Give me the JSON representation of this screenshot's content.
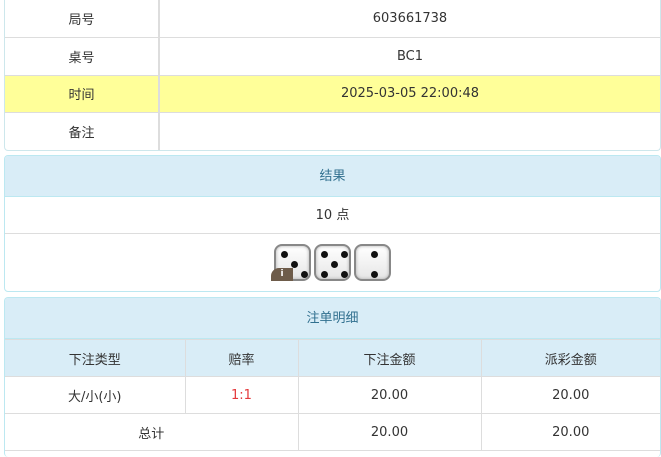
{
  "info": [
    {
      "label": "局号",
      "value": "603661738"
    },
    {
      "label": "桌号",
      "value": "BC1"
    },
    {
      "label": "时间",
      "value": "2025-03-05 22:00:48",
      "highlight": true
    },
    {
      "label": "备注",
      "value": ""
    }
  ],
  "result": {
    "title": "结果",
    "points": "10 点",
    "dice": [
      3,
      5,
      2
    ],
    "badge": "i"
  },
  "bets": {
    "title": "注单明细",
    "headers": [
      "下注类型",
      "赔率",
      "下注金额",
      "派彩金额"
    ],
    "rows": [
      {
        "type": "大/小(小)",
        "odds": "1:1",
        "amount": "20.00",
        "payout": "20.00"
      }
    ],
    "total": {
      "label": "总计",
      "amount": "20.00",
      "payout": "20.00"
    }
  },
  "colors": {
    "odds": "#e4393c",
    "highlight": "#ffff99",
    "panel_header": "#d9edf7"
  }
}
